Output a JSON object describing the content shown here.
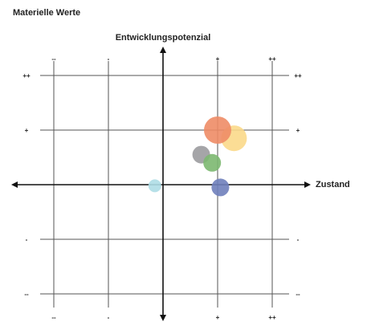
{
  "chart_data": {
    "type": "scatter",
    "title": "Materielle Werte",
    "xlabel": "Zustand",
    "ylabel": "Entwicklungspotenzial",
    "xlim": [
      -2.5,
      2.5
    ],
    "ylim": [
      -2.5,
      2.5
    ],
    "grid": true,
    "x_ticks": [
      "--",
      "-",
      "+",
      "++"
    ],
    "y_ticks": [
      "++",
      "+",
      "-",
      "--"
    ],
    "points": [
      {
        "x": 1.3,
        "y": 0.85,
        "size": 16,
        "color": "#FBD98A"
      },
      {
        "x": 1.0,
        "y": 1.0,
        "size": 17,
        "color": "#EE8C66"
      },
      {
        "x": 0.7,
        "y": 0.55,
        "size": 11,
        "color": "#9B9B9F"
      },
      {
        "x": 0.9,
        "y": 0.4,
        "size": 11,
        "color": "#7CB870"
      },
      {
        "x": 1.05,
        "y": -0.05,
        "size": 11,
        "color": "#6F7FBB"
      },
      {
        "x": -0.15,
        "y": -0.02,
        "size": 8,
        "color": "#AEDDE5"
      }
    ]
  }
}
